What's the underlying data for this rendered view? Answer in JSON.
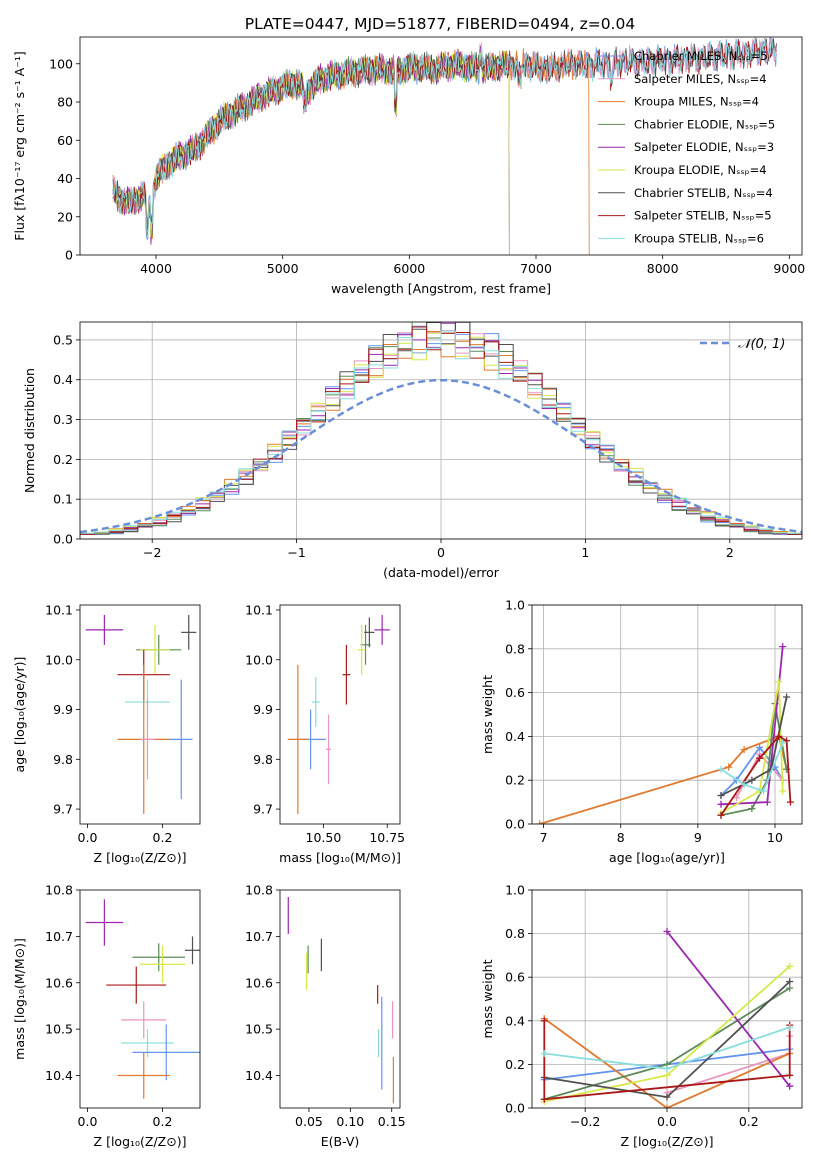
{
  "figure": {
    "title": "PLATE=0447, MJD=51877, FIBERID=0494, z=0.04"
  },
  "chart_data": [
    {
      "id": "spectrum",
      "type": "line",
      "title": "PLATE=0447, MJD=51877, FIBERID=0494, z=0.04",
      "xlabel": "wavelength [Angstrom, rest frame]",
      "ylabel": "Flux [fλ10⁻¹⁷ erg cm⁻² s⁻¹ A⁻¹]",
      "xlim": [
        3400,
        9100
      ],
      "ylim": [
        0,
        114
      ],
      "xticks": [
        4000,
        5000,
        6000,
        7000,
        8000,
        9000
      ],
      "yticks": [
        0,
        20,
        40,
        60,
        80,
        100
      ],
      "grid": false,
      "legend_position": "top-right",
      "anchors_x": [
        3650,
        3700,
        3800,
        3900,
        3950,
        4000,
        4100,
        4200,
        4300,
        4400,
        4500,
        4600,
        4700,
        4800,
        4900,
        5000,
        5100,
        5200,
        5300,
        5400,
        5500,
        5600,
        5700,
        5800,
        5900,
        6000,
        6100,
        6200,
        6300,
        6400,
        6500,
        6600,
        6700,
        6800,
        6900,
        7000,
        7100,
        7200,
        7300,
        7400,
        7500,
        7600,
        7700,
        7800,
        7900,
        8000,
        8100,
        8200,
        8300,
        8400,
        8500,
        8600,
        8700,
        8800
      ],
      "anchors_y": [
        35,
        30,
        27,
        32,
        24,
        40,
        48,
        52,
        55,
        62,
        70,
        74,
        78,
        82,
        85,
        88,
        90,
        86,
        92,
        94,
        95,
        96,
        97,
        97,
        96,
        98,
        98,
        97,
        99,
        99,
        98,
        97,
        99,
        99,
        100,
        98,
        97,
        99,
        100,
        99,
        100,
        100,
        101,
        101,
        101,
        102,
        102,
        103,
        103,
        104,
        105,
        105,
        106,
        107
      ],
      "series": [
        {
          "name": "Chabrier MILES, Nₛₛₚ=5",
          "color": "#6495ed",
          "drop_at": null
        },
        {
          "name": "Salpeter MILES, Nₛₛₚ=4",
          "color": "#e895c0",
          "drop_at": null
        },
        {
          "name": "Kroupa MILES, Nₛₛₚ=4",
          "color": "#e07a2f",
          "drop_at": 7420
        },
        {
          "name": "Chabrier ELODIE, Nₛₛₚ=5",
          "color": "#5e8a5a",
          "drop_at": 6790
        },
        {
          "name": "Salpeter ELODIE, Nₛₛₚ=3",
          "color": "#9b27af",
          "drop_at": 6790
        },
        {
          "name": "Kroupa ELODIE, Nₛₛₚ=4",
          "color": "#d6e84a",
          "drop_at": 6790
        },
        {
          "name": "Chabrier STELIB, Nₛₛₚ=4",
          "color": "#505050",
          "drop_at": null
        },
        {
          "name": "Salpeter STELIB, Nₛₛₚ=5",
          "color": "#aa1818",
          "drop_at": null
        },
        {
          "name": "Kroupa STELIB, Nₛₛₚ=6",
          "color": "#88dddd",
          "drop_at": null
        }
      ]
    },
    {
      "id": "residuals",
      "type": "line",
      "xlabel": "(data-model)/error",
      "ylabel": "Normed distribution",
      "xlim": [
        -2.5,
        2.5
      ],
      "ylim": [
        0,
        0.545
      ],
      "xticks": [
        -2,
        -1,
        0,
        1,
        2
      ],
      "yticks": [
        0.0,
        0.1,
        0.2,
        0.3,
        0.4,
        0.5
      ],
      "grid": true,
      "legend_position": "top-right",
      "reference_curve": {
        "name": "𝒩(0, 1)",
        "color": "#6a8fd8",
        "mean": 0,
        "sigma": 1
      },
      "bin_width": 0.1,
      "series_colors": [
        "#6495ed",
        "#e895c0",
        "#e07a2f",
        "#5e8a5a",
        "#9b27af",
        "#d6e84a",
        "#505050",
        "#aa1818",
        "#88dddd"
      ]
    },
    {
      "id": "age-vs-metallicity",
      "type": "scatter",
      "xlabel": "Z [log₁₀(Z/Z⊙)]",
      "ylabel": "age  [log₁₀(age/yr)]",
      "xlim": [
        -0.02,
        0.3
      ],
      "ylim": [
        9.67,
        10.11
      ],
      "xticks": [
        0.0,
        0.2
      ],
      "yticks": [
        9.7,
        9.8,
        9.9,
        10.0,
        10.1
      ],
      "grid": false,
      "points": [
        {
          "x": 0.045,
          "y": 10.06,
          "xerr": 0.05,
          "yerr": 0.03,
          "color": "#9b27af"
        },
        {
          "x": 0.19,
          "y": 10.02,
          "xerr": 0.06,
          "yerr": 0.03,
          "color": "#5e8a5a"
        },
        {
          "x": 0.18,
          "y": 10.02,
          "xerr": 0.04,
          "yerr": 0.05,
          "color": "#d6e84a"
        },
        {
          "x": 0.27,
          "y": 10.055,
          "xerr": 0.02,
          "yerr": 0.035,
          "color": "#505050"
        },
        {
          "x": 0.15,
          "y": 9.97,
          "xerr": 0.07,
          "yerr": 0.05,
          "color": "#aa1818"
        },
        {
          "x": 0.16,
          "y": 9.915,
          "xerr": 0.06,
          "yerr": 0.045,
          "color": "#88dddd"
        },
        {
          "x": 0.25,
          "y": 9.84,
          "xerr": 0.03,
          "yerr": 0.12,
          "color": "#6495ed"
        },
        {
          "x": 0.15,
          "y": 9.84,
          "xerr": 0.07,
          "yerr": 0.15,
          "color": "#e07a2f"
        },
        {
          "x": 0.16,
          "y": 9.84,
          "xerr": 0.02,
          "yerr": 0.08,
          "color": "#e895c0"
        }
      ]
    },
    {
      "id": "age-vs-mass",
      "type": "scatter",
      "xlabel": "mass [log₁₀(M/M⊙)]",
      "ylabel": "",
      "xlim": [
        10.33,
        10.8
      ],
      "ylim": [
        9.67,
        10.11
      ],
      "xticks": [
        10.5,
        10.75
      ],
      "yticks": [
        9.7,
        9.8,
        9.9,
        10.0,
        10.1
      ],
      "grid": false,
      "points": [
        {
          "x": 10.73,
          "y": 10.06,
          "xerr": 0.03,
          "yerr": 0.03,
          "color": "#9b27af"
        },
        {
          "x": 10.665,
          "y": 10.03,
          "xerr": 0.02,
          "yerr": 0.04,
          "color": "#5e8a5a"
        },
        {
          "x": 10.65,
          "y": 10.02,
          "xerr": 0.015,
          "yerr": 0.05,
          "color": "#d6e84a"
        },
        {
          "x": 10.68,
          "y": 10.055,
          "xerr": 0.02,
          "yerr": 0.03,
          "color": "#505050"
        },
        {
          "x": 10.59,
          "y": 9.97,
          "xerr": 0.015,
          "yerr": 0.06,
          "color": "#aa1818"
        },
        {
          "x": 10.47,
          "y": 9.915,
          "xerr": 0.015,
          "yerr": 0.05,
          "color": "#88dddd"
        },
        {
          "x": 10.45,
          "y": 9.84,
          "xerr": 0.06,
          "yerr": 0.06,
          "color": "#6495ed"
        },
        {
          "x": 10.4,
          "y": 9.84,
          "xerr": 0.04,
          "yerr": 0.15,
          "color": "#e07a2f"
        },
        {
          "x": 10.52,
          "y": 9.82,
          "xerr": 0.01,
          "yerr": 0.07,
          "color": "#e895c0"
        }
      ]
    },
    {
      "id": "mass-weight-vs-age",
      "type": "line",
      "xlabel": "age  [log₁₀(age/yr)]",
      "ylabel": "mass weight",
      "xlim": [
        6.85,
        10.35
      ],
      "ylim": [
        0.0,
        1.0
      ],
      "xticks": [
        7,
        8,
        9,
        10
      ],
      "yticks": [
        0.0,
        0.2,
        0.4,
        0.6,
        0.8,
        1.0
      ],
      "grid": true,
      "series": [
        {
          "color": "#6495ed",
          "x": [
            9.3,
            9.5,
            9.8,
            10.0,
            10.1
          ],
          "y": [
            0.13,
            0.2,
            0.35,
            0.26,
            0.2
          ]
        },
        {
          "color": "#e895c0",
          "x": [
            9.5,
            9.8,
            10.1
          ],
          "y": [
            0.12,
            0.32,
            0.2
          ]
        },
        {
          "color": "#e07a2f",
          "x": [
            6.95,
            9.4,
            9.6,
            10.05,
            10.15
          ],
          "y": [
            0.0,
            0.26,
            0.34,
            0.4,
            0.25
          ]
        },
        {
          "color": "#5e8a5a",
          "x": [
            9.3,
            9.7,
            9.9,
            10.0,
            10.15
          ],
          "y": [
            0.04,
            0.07,
            0.2,
            0.55,
            0.25
          ]
        },
        {
          "color": "#9b27af",
          "x": [
            9.3,
            9.9,
            10.1
          ],
          "y": [
            0.09,
            0.1,
            0.81
          ]
        },
        {
          "color": "#d6e84a",
          "x": [
            9.3,
            9.8,
            10.05,
            10.1
          ],
          "y": [
            0.05,
            0.15,
            0.65,
            0.15
          ]
        },
        {
          "color": "#505050",
          "x": [
            9.3,
            9.7,
            9.95,
            10.15
          ],
          "y": [
            0.13,
            0.2,
            0.25,
            0.58
          ]
        },
        {
          "color": "#aa1818",
          "x": [
            9.3,
            9.8,
            10.05,
            10.15,
            10.2
          ],
          "y": [
            0.04,
            0.3,
            0.4,
            0.38,
            0.1
          ]
        },
        {
          "color": "#88dddd",
          "x": [
            9.3,
            9.6,
            9.85,
            10.1
          ],
          "y": [
            0.25,
            0.18,
            0.15,
            0.37
          ]
        }
      ]
    },
    {
      "id": "mass-vs-metallicity",
      "type": "scatter",
      "xlabel": "Z [log₁₀(Z/Z⊙)]",
      "ylabel": "mass [log₁₀(M/M⊙)]",
      "xlim": [
        -0.02,
        0.3
      ],
      "ylim": [
        10.33,
        10.8
      ],
      "xticks": [
        0.0,
        0.2
      ],
      "yticks": [
        10.4,
        10.5,
        10.6,
        10.7,
        10.8
      ],
      "grid": false,
      "points": [
        {
          "x": 0.045,
          "y": 10.73,
          "xerr": 0.05,
          "yerr": 0.05,
          "color": "#9b27af"
        },
        {
          "x": 0.19,
          "y": 10.655,
          "xerr": 0.07,
          "yerr": 0.03,
          "color": "#5e8a5a"
        },
        {
          "x": 0.2,
          "y": 10.64,
          "xerr": 0.06,
          "yerr": 0.04,
          "color": "#d6e84a"
        },
        {
          "x": 0.28,
          "y": 10.67,
          "xerr": 0.02,
          "yerr": 0.03,
          "color": "#505050"
        },
        {
          "x": 0.13,
          "y": 10.595,
          "xerr": 0.08,
          "yerr": 0.04,
          "color": "#aa1818"
        },
        {
          "x": 0.15,
          "y": 10.52,
          "xerr": 0.06,
          "yerr": 0.04,
          "color": "#e895c0"
        },
        {
          "x": 0.16,
          "y": 10.47,
          "xerr": 0.07,
          "yerr": 0.03,
          "color": "#88dddd"
        },
        {
          "x": 0.21,
          "y": 10.45,
          "xerr": 0.09,
          "yerr": 0.06,
          "color": "#6495ed"
        },
        {
          "x": 0.15,
          "y": 10.4,
          "xerr": 0.07,
          "yerr": 0.05,
          "color": "#e07a2f"
        }
      ]
    },
    {
      "id": "mass-vs-ebv",
      "type": "scatter",
      "xlabel": "E(B-V)",
      "ylabel": "",
      "xlim": [
        0.015,
        0.16
      ],
      "ylim": [
        10.33,
        10.8
      ],
      "xticks": [
        0.05,
        0.1,
        0.15
      ],
      "yticks": [
        10.4,
        10.5,
        10.6,
        10.7,
        10.8
      ],
      "grid": false,
      "points": [
        {
          "x": 0.025,
          "y": 10.745,
          "xerr": 0,
          "yerr": 0.04,
          "color": "#9b27af"
        },
        {
          "x": 0.047,
          "y": 10.625,
          "xerr": 0,
          "yerr": 0.04,
          "color": "#d6e84a"
        },
        {
          "x": 0.049,
          "y": 10.65,
          "xerr": 0,
          "yerr": 0.03,
          "color": "#5e8a5a"
        },
        {
          "x": 0.065,
          "y": 10.66,
          "xerr": 0,
          "yerr": 0.035,
          "color": "#505050"
        },
        {
          "x": 0.133,
          "y": 10.575,
          "xerr": 0,
          "yerr": 0.02,
          "color": "#aa1818"
        },
        {
          "x": 0.134,
          "y": 10.47,
          "xerr": 0,
          "yerr": 0.03,
          "color": "#88dddd"
        },
        {
          "x": 0.138,
          "y": 10.47,
          "xerr": 0,
          "yerr": 0.1,
          "color": "#6495ed"
        },
        {
          "x": 0.151,
          "y": 10.52,
          "xerr": 0,
          "yerr": 0.04,
          "color": "#e895c0"
        },
        {
          "x": 0.152,
          "y": 10.39,
          "xerr": 0,
          "yerr": 0.05,
          "color": "#e07a2f"
        }
      ]
    },
    {
      "id": "mass-weight-vs-metallicity",
      "type": "line",
      "xlabel": "Z [log₁₀(Z/Z⊙)]",
      "ylabel": "mass weight",
      "xlim": [
        -0.33,
        0.33
      ],
      "ylim": [
        0.0,
        1.0
      ],
      "xticks": [
        -0.2,
        0.0,
        0.2
      ],
      "yticks": [
        0.0,
        0.2,
        0.4,
        0.6,
        0.8,
        1.0
      ],
      "grid": true,
      "series": [
        {
          "color": "#6495ed",
          "x": [
            -0.3,
            0.0,
            0.3
          ],
          "y": [
            0.13,
            0.2,
            0.27
          ]
        },
        {
          "color": "#e895c0",
          "x": [
            0.0,
            0.3,
            0.3
          ],
          "y": [
            0.07,
            0.25,
            0.33
          ]
        },
        {
          "color": "#e07a2f",
          "x": [
            -0.3,
            0.0,
            0.3
          ],
          "y": [
            0.41,
            0.0,
            0.25
          ]
        },
        {
          "color": "#5e8a5a",
          "x": [
            -0.3,
            0.0,
            0.3
          ],
          "y": [
            0.04,
            0.2,
            0.55
          ]
        },
        {
          "color": "#9b27af",
          "x": [
            0.0,
            0.3
          ],
          "y": [
            0.81,
            0.1
          ]
        },
        {
          "color": "#d6e84a",
          "x": [
            -0.3,
            0.0,
            0.3
          ],
          "y": [
            0.03,
            0.15,
            0.65
          ]
        },
        {
          "color": "#505050",
          "x": [
            -0.3,
            0.0,
            0.3
          ],
          "y": [
            0.14,
            0.05,
            0.58
          ]
        },
        {
          "color": "#aa1818",
          "x": [
            -0.3,
            -0.3,
            0.3,
            0.3
          ],
          "y": [
            0.4,
            0.04,
            0.15,
            0.38
          ]
        },
        {
          "color": "#88dddd",
          "x": [
            -0.3,
            0.0,
            0.3
          ],
          "y": [
            0.25,
            0.18,
            0.37
          ]
        }
      ]
    }
  ]
}
